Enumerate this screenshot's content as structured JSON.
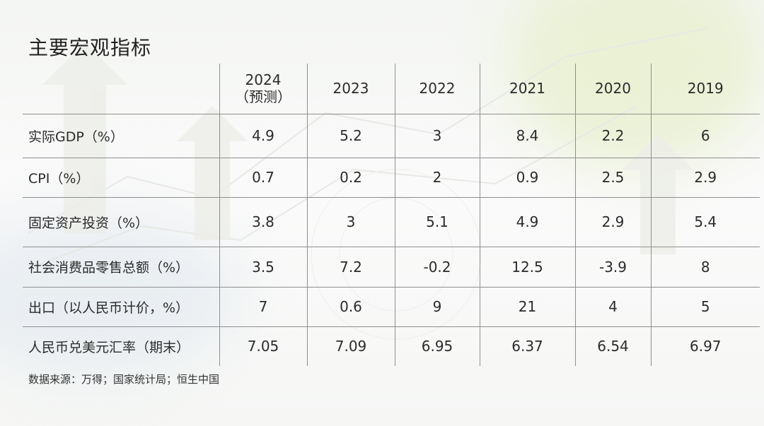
{
  "title": "主要宏观指标",
  "table": {
    "columns": [
      {
        "year": "2024",
        "note": "（预测）"
      },
      {
        "year": "2023",
        "note": ""
      },
      {
        "year": "2022",
        "note": ""
      },
      {
        "year": "2021",
        "note": ""
      },
      {
        "year": "2020",
        "note": ""
      },
      {
        "year": "2019",
        "note": ""
      }
    ],
    "rows": [
      {
        "label": "实际GDP（%）",
        "values": [
          "4.9",
          "5.2",
          "3",
          "8.4",
          "2.2",
          "6"
        ]
      },
      {
        "label": "CPI（%）",
        "values": [
          "0.7",
          "0.2",
          "2",
          "0.9",
          "2.5",
          "2.9"
        ]
      },
      {
        "label": "固定资产投资（%）",
        "values": [
          "3.8",
          "3",
          "5.1",
          "4.9",
          "2.9",
          "5.4"
        ]
      },
      {
        "label": "社会消费品零售总额（%）",
        "values": [
          "3.5",
          "7.2",
          "-0.2",
          "12.5",
          "-3.9",
          "8"
        ]
      },
      {
        "label": "出口（以人民币计价，%）",
        "values": [
          "7",
          "0.6",
          "9",
          "21",
          "4",
          "5"
        ]
      },
      {
        "label": "人民币兑美元汇率（期末）",
        "values": [
          "7.05",
          "7.09",
          "6.95",
          "6.37",
          "6.54",
          "6.97"
        ]
      }
    ]
  },
  "source": "数据来源：万得；国家统计局；恒生中国"
}
